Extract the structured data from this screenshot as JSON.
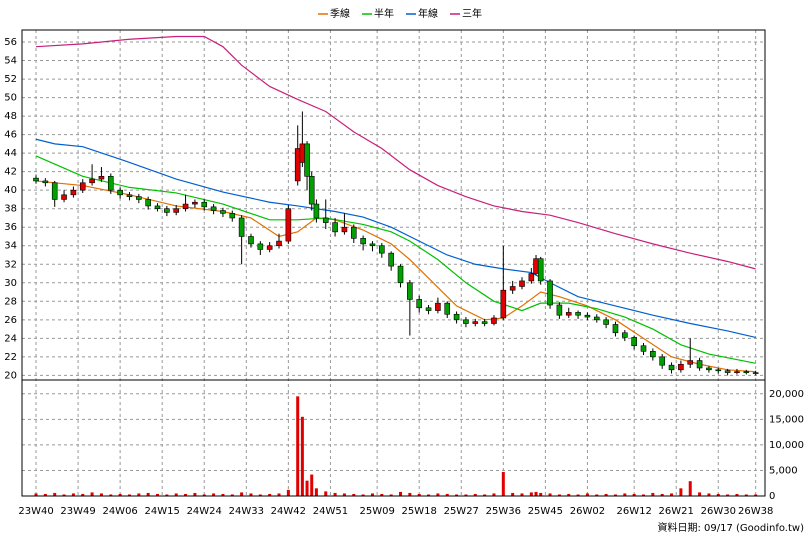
{
  "chart_data": {
    "type": "candlestick",
    "legend": "top",
    "grid": true,
    "up_color": "#e00000",
    "down_color": "#00a000",
    "footer": "資料日期: 09/17 (Goodinfo.tw)",
    "xlim": [
      -3,
      156
    ],
    "xticks": [
      {
        "value": 0,
        "label": "23W40"
      },
      {
        "value": 9,
        "label": "23W49"
      },
      {
        "value": 18,
        "label": "24W06"
      },
      {
        "value": 27,
        "label": "24W15"
      },
      {
        "value": 36,
        "label": "24W24"
      },
      {
        "value": 45,
        "label": "24W33"
      },
      {
        "value": 54,
        "label": "24W42"
      },
      {
        "value": 63,
        "label": "24W51"
      },
      {
        "value": 73,
        "label": "25W09"
      },
      {
        "value": 82,
        "label": "25W18"
      },
      {
        "value": 91,
        "label": "25W27"
      },
      {
        "value": 100,
        "label": "25W36"
      },
      {
        "value": 109,
        "label": "25W45"
      },
      {
        "value": 118,
        "label": "26W02"
      },
      {
        "value": 128,
        "label": "26W12"
      },
      {
        "value": 137,
        "label": "26W21"
      },
      {
        "value": 146,
        "label": "26W30"
      },
      {
        "value": 154,
        "label": "26W38"
      }
    ],
    "ylim": [
      19.5,
      57.3
    ],
    "yticks": [
      20,
      22,
      24,
      26,
      28,
      30,
      32,
      34,
      36,
      38,
      40,
      42,
      44,
      46,
      48,
      50,
      52,
      54,
      56
    ],
    "x": [
      0,
      2,
      4,
      6,
      8,
      10,
      12,
      14,
      16,
      18,
      20,
      22,
      24,
      26,
      28,
      30,
      32,
      34,
      36,
      38,
      40,
      42,
      44,
      46,
      48,
      50,
      52,
      54,
      56,
      57,
      58,
      59,
      60,
      62,
      64,
      66,
      68,
      70,
      72,
      74,
      76,
      78,
      80,
      82,
      84,
      86,
      88,
      90,
      92,
      94,
      96,
      98,
      100,
      102,
      104,
      106,
      107,
      108,
      110,
      112,
      114,
      116,
      118,
      120,
      122,
      124,
      126,
      128,
      130,
      132,
      134,
      136,
      138,
      140,
      142,
      144,
      146,
      148,
      150,
      152,
      154
    ],
    "open": [
      41.3,
      41,
      40.8,
      39,
      39.5,
      40,
      40.8,
      41.2,
      41.5,
      40,
      39.5,
      39.3,
      39,
      38.3,
      38,
      37.6,
      38,
      38.5,
      38.7,
      38.2,
      37.8,
      37.5,
      37,
      35,
      34.2,
      33.6,
      34,
      34.5,
      41,
      43,
      45,
      41.5,
      38.5,
      37,
      36.5,
      35.5,
      36,
      34.8,
      34.2,
      34,
      33.2,
      31.8,
      30,
      28.2,
      27.3,
      27,
      27.8,
      26.6,
      26,
      25.6,
      25.8,
      25.6,
      26.2,
      29.2,
      29.6,
      30.2,
      31,
      32.6,
      30.2,
      27.6,
      26.5,
      26.8,
      26.5,
      26.3,
      26,
      25.5,
      24.6,
      24.1,
      23.2,
      22.6,
      22,
      21.1,
      20.6,
      21.2,
      21.6,
      20.8,
      20.6,
      20.5,
      20.3,
      20.4,
      20.3
    ],
    "high": [
      41.6,
      41.3,
      41,
      40,
      40.4,
      41.2,
      42.8,
      42.5,
      41.8,
      40.3,
      39.8,
      39.6,
      39.3,
      38.6,
      38.3,
      38.4,
      39.5,
      39,
      39,
      38.5,
      38.1,
      37.8,
      37.3,
      35.3,
      34.5,
      34.4,
      35.3,
      38.4,
      47,
      48.5,
      45.3,
      42,
      39,
      39,
      37,
      37.5,
      36.3,
      35.1,
      34.5,
      34.3,
      33.4,
      32,
      30.3,
      28.6,
      27.6,
      28.4,
      28,
      26.9,
      26.3,
      26.1,
      26.1,
      26.5,
      34,
      30.2,
      30.6,
      31.6,
      33,
      32.8,
      30.4,
      27.9,
      27.3,
      27,
      26.8,
      26.6,
      26.3,
      25.8,
      24.9,
      24.3,
      23.5,
      22.9,
      22.3,
      21.4,
      21.6,
      24,
      21.9,
      21,
      20.8,
      20.7,
      20.7,
      20.6,
      20.5
    ],
    "low": [
      40.7,
      40.4,
      38.2,
      38.7,
      39.2,
      39.7,
      40.5,
      40.9,
      39.6,
      39.1,
      38.9,
      38.6,
      37.9,
      37.7,
      37.2,
      37.3,
      37.7,
      38.1,
      37.8,
      37.4,
      37.1,
      36.6,
      32,
      33.8,
      33,
      33.3,
      33.7,
      34.2,
      40.5,
      42.5,
      40,
      37.8,
      36.5,
      35.8,
      35,
      35.2,
      34.3,
      33.5,
      33.4,
      32.7,
      31.3,
      29.5,
      24.3,
      26.8,
      26.6,
      26.7,
      26.2,
      25.6,
      25.2,
      25.3,
      25.3,
      25.4,
      26,
      28.8,
      29.3,
      29.9,
      30.8,
      29.8,
      27.2,
      26.1,
      26.2,
      26.1,
      26,
      25.7,
      25.1,
      24.2,
      23.7,
      22.8,
      22.2,
      21.6,
      20.7,
      20.2,
      20.3,
      20.8,
      20.5,
      20.3,
      20.2,
      20,
      20.1,
      20.1,
      20
    ],
    "close": [
      41,
      40.8,
      39,
      39.5,
      40,
      40.8,
      41.2,
      41.5,
      40,
      39.5,
      39.3,
      39,
      38.3,
      38,
      37.6,
      38,
      38.5,
      38.7,
      38.2,
      37.8,
      37.5,
      37,
      35,
      34.2,
      33.6,
      34,
      34.5,
      38,
      44.5,
      45,
      41.5,
      38.5,
      37,
      36.5,
      35.5,
      36,
      34.8,
      34.2,
      34,
      33.2,
      31.8,
      30,
      28.2,
      27.3,
      27,
      27.8,
      26.6,
      26,
      25.6,
      25.8,
      25.6,
      26.2,
      29.2,
      29.6,
      30.2,
      31,
      32.6,
      30.2,
      27.6,
      26.5,
      26.8,
      26.5,
      26.3,
      26,
      25.5,
      24.6,
      24.1,
      23.2,
      22.6,
      22,
      21.1,
      20.6,
      21.2,
      21.6,
      20.8,
      20.6,
      20.5,
      20.3,
      20.4,
      20.3,
      20.2
    ],
    "series": [
      {
        "name": "季線",
        "color": "#e07000",
        "x": [
          0,
          10,
          20,
          30,
          40,
          46,
          52,
          56,
          60,
          64,
          70,
          76,
          80,
          86,
          90,
          96,
          100,
          104,
          108,
          112,
          118,
          124,
          130,
          136,
          142,
          148,
          154
        ],
        "values": [
          41,
          40.5,
          39.5,
          38.3,
          37.7,
          37,
          35,
          35.5,
          37,
          36.8,
          35.7,
          34.2,
          32.5,
          29.5,
          27.5,
          26,
          26.2,
          27.5,
          29,
          28.5,
          27.5,
          26,
          24,
          22,
          21.2,
          20.6,
          20.4
        ]
      },
      {
        "name": "半年",
        "color": "#00c000",
        "x": [
          0,
          10,
          20,
          30,
          40,
          50,
          56,
          62,
          70,
          76,
          80,
          86,
          92,
          98,
          104,
          108,
          114,
          120,
          126,
          132,
          138,
          144,
          154
        ],
        "values": [
          43.7,
          41.5,
          40.3,
          39.7,
          38.5,
          36.8,
          36.8,
          37,
          36.3,
          35.5,
          34.5,
          32.5,
          30,
          28,
          27,
          27.8,
          27.8,
          27.2,
          26.3,
          25,
          23.3,
          22.3,
          21.3
        ]
      },
      {
        "name": "年線",
        "color": "#0060d0",
        "x": [
          0,
          4,
          10,
          20,
          30,
          40,
          50,
          56,
          64,
          70,
          76,
          82,
          88,
          94,
          100,
          106,
          110,
          116,
          124,
          132,
          140,
          148,
          154
        ],
        "values": [
          45.5,
          45,
          44.7,
          43,
          41.2,
          39.8,
          38.7,
          38.3,
          37.7,
          37.1,
          36,
          34.5,
          33,
          32,
          31.5,
          31.1,
          30,
          28.5,
          27.5,
          26.5,
          25.6,
          24.8,
          24.1
        ]
      },
      {
        "name": "三年",
        "color": "#c8207a",
        "x": [
          0,
          10,
          20,
          30,
          36,
          40,
          44,
          50,
          56,
          62,
          68,
          74,
          80,
          86,
          92,
          98,
          104,
          110,
          116,
          124,
          132,
          140,
          148,
          154
        ],
        "values": [
          55.5,
          55.8,
          56.3,
          56.6,
          56.6,
          55.5,
          53.5,
          51.2,
          49.8,
          48.5,
          46.3,
          44.5,
          42.2,
          40.5,
          39.3,
          38.3,
          37.7,
          37.3,
          36.5,
          35.3,
          34.2,
          33.2,
          32.3,
          31.5
        ]
      }
    ],
    "volume": {
      "color": "#e00000",
      "ylim": [
        0,
        22700
      ],
      "yticks": [
        0,
        {
          "value": 5000,
          "label": "5,000"
        },
        {
          "value": 10000,
          "label": "10,000"
        },
        {
          "value": 15000,
          "label": "15,000"
        },
        {
          "value": 20000,
          "label": "20,000"
        }
      ],
      "values": [
        500,
        400,
        600,
        300,
        500,
        400,
        700,
        500,
        300,
        400,
        300,
        500,
        600,
        400,
        300,
        500,
        400,
        600,
        300,
        500,
        400,
        300,
        700,
        500,
        300,
        400,
        500,
        1200,
        19500,
        15500,
        3000,
        4200,
        1500,
        900,
        600,
        500,
        400,
        300,
        500,
        400,
        300,
        800,
        600,
        400,
        300,
        500,
        400,
        300,
        300,
        400,
        300,
        500,
        4700,
        600,
        500,
        700,
        800,
        600,
        500,
        300,
        400,
        300,
        500,
        300,
        400,
        300,
        500,
        400,
        300,
        600,
        400,
        500,
        1500,
        2900,
        700,
        500,
        400,
        300,
        400,
        300,
        300
      ]
    }
  }
}
